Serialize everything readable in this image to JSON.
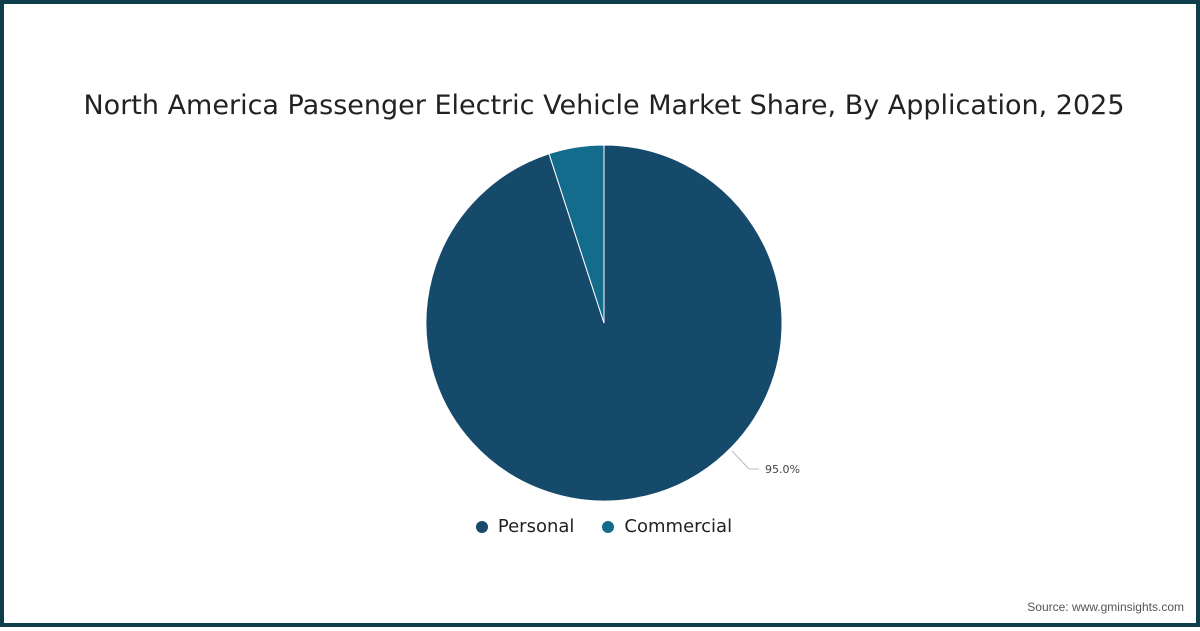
{
  "chart_data": {
    "type": "pie",
    "title": "North America Passenger Electric Vehicle Market Share, By Application, 2025",
    "categories": [
      "Personal",
      "Commercial"
    ],
    "values": [
      95.0,
      5.0
    ],
    "colors": [
      "#164a6b",
      "#136c8c"
    ],
    "data_labels": [
      "95.0%",
      ""
    ],
    "legend_position": "bottom"
  },
  "header": {
    "title": "North America Passenger Electric Vehicle Market Share, By Application, 2025"
  },
  "legend": {
    "items": [
      {
        "label": "Personal",
        "color": "#164a6b"
      },
      {
        "label": "Commercial",
        "color": "#136c8c"
      }
    ]
  },
  "annotations": {
    "personal_label": "95.0%"
  },
  "footer": {
    "source": "Source: www.gminsights.com"
  }
}
